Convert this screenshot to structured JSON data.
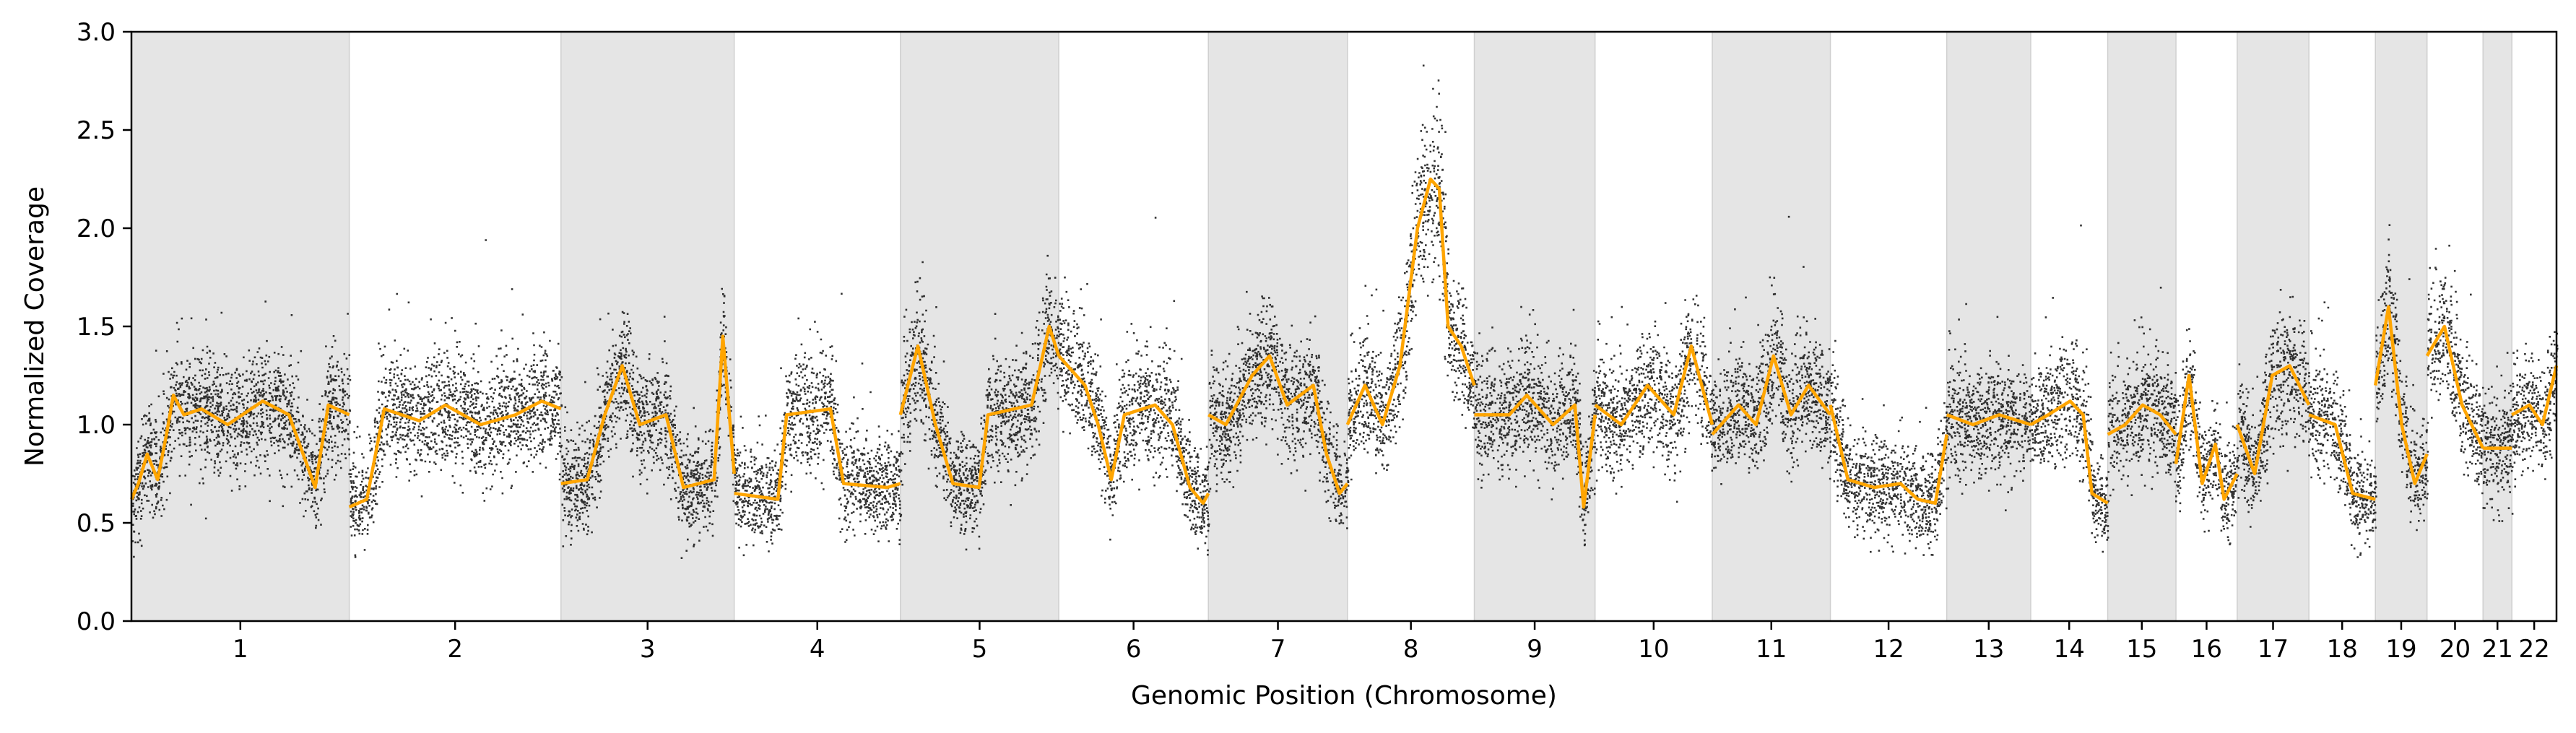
{
  "chart_data": {
    "type": "scatter",
    "xlabel": "Genomic Position (Chromosome)",
    "ylabel": "Normalized Coverage",
    "ylim": [
      0,
      3
    ],
    "yticks": [
      "0.0",
      "0.5",
      "1.0",
      "1.5",
      "2.0",
      "2.5",
      "3.0"
    ],
    "grid": false,
    "legend": "none",
    "colors": {
      "points": "#000000",
      "segment_line": "#FFA500",
      "shaded_band": "#E5E5E5"
    },
    "chromosomes": [
      {
        "name": "1",
        "length": 249
      },
      {
        "name": "2",
        "length": 242
      },
      {
        "name": "3",
        "length": 198
      },
      {
        "name": "4",
        "length": 190
      },
      {
        "name": "5",
        "length": 181
      },
      {
        "name": "6",
        "length": 171
      },
      {
        "name": "7",
        "length": 159
      },
      {
        "name": "8",
        "length": 145
      },
      {
        "name": "9",
        "length": 138
      },
      {
        "name": "10",
        "length": 134
      },
      {
        "name": "11",
        "length": 135
      },
      {
        "name": "12",
        "length": 133
      },
      {
        "name": "13",
        "length": 96
      },
      {
        "name": "14",
        "length": 88
      },
      {
        "name": "15",
        "length": 78
      },
      {
        "name": "16",
        "length": 70
      },
      {
        "name": "17",
        "length": 82
      },
      {
        "name": "18",
        "length": 76
      },
      {
        "name": "19",
        "length": 59
      },
      {
        "name": "20",
        "length": 64
      },
      {
        "name": "21",
        "length": 33
      },
      {
        "name": "22",
        "length": 51
      }
    ],
    "shaded_chromosomes": [
      "1",
      "3",
      "5",
      "7",
      "9",
      "11",
      "13",
      "15",
      "17",
      "19",
      "21"
    ],
    "segments": [
      {
        "chrom": "1",
        "points": [
          [
            0,
            0.62
          ],
          [
            8,
            0.7
          ],
          [
            18,
            0.85
          ],
          [
            30,
            0.72
          ],
          [
            40,
            0.95
          ],
          [
            48,
            1.15
          ],
          [
            60,
            1.05
          ],
          [
            80,
            1.08
          ],
          [
            110,
            1.0
          ],
          [
            150,
            1.12
          ],
          [
            180,
            1.05
          ],
          [
            210,
            0.68
          ],
          [
            225,
            1.1
          ],
          [
            249,
            1.05
          ]
        ]
      },
      {
        "chrom": "2",
        "points": [
          [
            0,
            0.58
          ],
          [
            20,
            0.62
          ],
          [
            40,
            1.08
          ],
          [
            80,
            1.02
          ],
          [
            110,
            1.1
          ],
          [
            150,
            1.0
          ],
          [
            190,
            1.05
          ],
          [
            220,
            1.12
          ],
          [
            242,
            1.08
          ]
        ]
      },
      {
        "chrom": "3",
        "points": [
          [
            0,
            0.7
          ],
          [
            30,
            0.72
          ],
          [
            50,
            1.05
          ],
          [
            70,
            1.3
          ],
          [
            90,
            1.0
          ],
          [
            120,
            1.05
          ],
          [
            140,
            0.68
          ],
          [
            175,
            0.72
          ],
          [
            185,
            1.45
          ],
          [
            198,
            0.75
          ]
        ]
      },
      {
        "chrom": "4",
        "points": [
          [
            0,
            0.65
          ],
          [
            50,
            0.62
          ],
          [
            60,
            1.05
          ],
          [
            110,
            1.08
          ],
          [
            125,
            0.7
          ],
          [
            175,
            0.68
          ],
          [
            190,
            0.7
          ]
        ]
      },
      {
        "chrom": "5",
        "points": [
          [
            0,
            1.05
          ],
          [
            20,
            1.4
          ],
          [
            40,
            1.0
          ],
          [
            60,
            0.7
          ],
          [
            90,
            0.68
          ],
          [
            100,
            1.05
          ],
          [
            150,
            1.1
          ],
          [
            170,
            1.5
          ],
          [
            181,
            1.35
          ]
        ]
      },
      {
        "chrom": "6",
        "points": [
          [
            0,
            1.35
          ],
          [
            30,
            1.2
          ],
          [
            45,
            1.0
          ],
          [
            60,
            0.72
          ],
          [
            75,
            1.05
          ],
          [
            110,
            1.1
          ],
          [
            130,
            1.0
          ],
          [
            150,
            0.68
          ],
          [
            165,
            0.6
          ],
          [
            171,
            0.65
          ]
        ]
      },
      {
        "chrom": "7",
        "points": [
          [
            0,
            1.05
          ],
          [
            20,
            1.0
          ],
          [
            50,
            1.25
          ],
          [
            70,
            1.35
          ],
          [
            90,
            1.1
          ],
          [
            120,
            1.2
          ],
          [
            135,
            0.85
          ],
          [
            150,
            0.65
          ],
          [
            159,
            0.7
          ]
        ]
      },
      {
        "chrom": "8",
        "points": [
          [
            0,
            1.0
          ],
          [
            20,
            1.2
          ],
          [
            40,
            1.0
          ],
          [
            60,
            1.3
          ],
          [
            80,
            2.0
          ],
          [
            95,
            2.25
          ],
          [
            105,
            2.2
          ],
          [
            115,
            1.5
          ],
          [
            130,
            1.4
          ],
          [
            145,
            1.2
          ]
        ]
      },
      {
        "chrom": "9",
        "points": [
          [
            0,
            1.05
          ],
          [
            40,
            1.05
          ],
          [
            60,
            1.15
          ],
          [
            90,
            1.0
          ],
          [
            115,
            1.1
          ],
          [
            125,
            0.58
          ],
          [
            138,
            1.05
          ]
        ]
      },
      {
        "chrom": "10",
        "points": [
          [
            0,
            1.1
          ],
          [
            30,
            1.0
          ],
          [
            60,
            1.2
          ],
          [
            90,
            1.05
          ],
          [
            110,
            1.4
          ],
          [
            134,
            1.0
          ]
        ]
      },
      {
        "chrom": "11",
        "points": [
          [
            0,
            0.95
          ],
          [
            30,
            1.1
          ],
          [
            50,
            1.0
          ],
          [
            70,
            1.35
          ],
          [
            90,
            1.05
          ],
          [
            110,
            1.2
          ],
          [
            135,
            1.05
          ]
        ]
      },
      {
        "chrom": "12",
        "points": [
          [
            0,
            1.1
          ],
          [
            20,
            0.72
          ],
          [
            50,
            0.68
          ],
          [
            80,
            0.7
          ],
          [
            100,
            0.62
          ],
          [
            120,
            0.6
          ],
          [
            133,
            0.95
          ]
        ]
      },
      {
        "chrom": "13",
        "points": [
          [
            0,
            1.05
          ],
          [
            30,
            1.0
          ],
          [
            60,
            1.05
          ],
          [
            96,
            1.0
          ]
        ]
      },
      {
        "chrom": "14",
        "points": [
          [
            0,
            1.0
          ],
          [
            20,
            1.05
          ],
          [
            45,
            1.12
          ],
          [
            60,
            1.05
          ],
          [
            70,
            0.65
          ],
          [
            88,
            0.6
          ]
        ]
      },
      {
        "chrom": "15",
        "points": [
          [
            0,
            0.95
          ],
          [
            20,
            1.0
          ],
          [
            40,
            1.1
          ],
          [
            60,
            1.05
          ],
          [
            78,
            0.95
          ]
        ]
      },
      {
        "chrom": "16",
        "points": [
          [
            0,
            0.8
          ],
          [
            15,
            1.25
          ],
          [
            30,
            0.7
          ],
          [
            45,
            0.9
          ],
          [
            55,
            0.62
          ],
          [
            70,
            0.75
          ]
        ]
      },
      {
        "chrom": "17",
        "points": [
          [
            0,
            1.0
          ],
          [
            20,
            0.75
          ],
          [
            40,
            1.25
          ],
          [
            60,
            1.3
          ],
          [
            82,
            1.1
          ]
        ]
      },
      {
        "chrom": "18",
        "points": [
          [
            0,
            1.05
          ],
          [
            30,
            1.0
          ],
          [
            50,
            0.65
          ],
          [
            76,
            0.62
          ]
        ]
      },
      {
        "chrom": "19",
        "points": [
          [
            0,
            1.2
          ],
          [
            15,
            1.6
          ],
          [
            30,
            1.0
          ],
          [
            45,
            0.7
          ],
          [
            59,
            0.85
          ]
        ]
      },
      {
        "chrom": "20",
        "points": [
          [
            0,
            1.35
          ],
          [
            20,
            1.5
          ],
          [
            40,
            1.1
          ],
          [
            64,
            0.88
          ]
        ]
      },
      {
        "chrom": "21",
        "points": [
          [
            0,
            0.88
          ],
          [
            33,
            0.88
          ]
        ]
      },
      {
        "chrom": "22",
        "points": [
          [
            0,
            1.05
          ],
          [
            20,
            1.1
          ],
          [
            35,
            1.0
          ],
          [
            51,
            1.3
          ]
        ]
      }
    ]
  }
}
